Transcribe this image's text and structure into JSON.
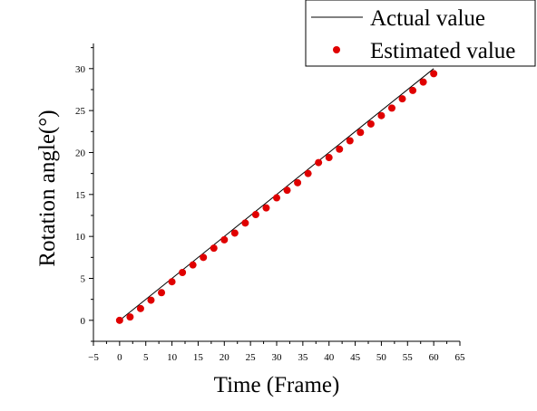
{
  "chart_data": {
    "type": "line",
    "xlabel": "Time (Frame)",
    "ylabel": "Rotation angle(°)",
    "xlim": [
      -5,
      65
    ],
    "ylim": [
      -2.5,
      33
    ],
    "x_ticks": [
      -5,
      0,
      5,
      10,
      15,
      20,
      25,
      30,
      35,
      40,
      45,
      50,
      55,
      60,
      65
    ],
    "y_ticks": [
      0,
      5,
      10,
      15,
      20,
      25,
      30
    ],
    "grid": false,
    "legend_position": "top-right",
    "series": [
      {
        "name": "Actual value",
        "style": "line",
        "color": "#000000",
        "x": [
          0,
          60
        ],
        "y": [
          0,
          30
        ]
      },
      {
        "name": "Estimated value",
        "style": "points",
        "color": "#e00000",
        "x": [
          0,
          2,
          4,
          6,
          8,
          10,
          12,
          14,
          16,
          18,
          20,
          22,
          24,
          26,
          28,
          30,
          32,
          34,
          36,
          38,
          40,
          42,
          44,
          46,
          48,
          50,
          52,
          54,
          56,
          58,
          60
        ],
        "y": [
          0.0,
          0.4,
          1.4,
          2.4,
          3.3,
          4.6,
          5.7,
          6.6,
          7.5,
          8.6,
          9.6,
          10.4,
          11.6,
          12.6,
          13.4,
          14.6,
          15.5,
          16.4,
          17.5,
          18.8,
          19.4,
          20.4,
          21.4,
          22.4,
          23.4,
          24.4,
          25.3,
          26.4,
          27.4,
          28.4,
          29.4
        ]
      }
    ]
  }
}
